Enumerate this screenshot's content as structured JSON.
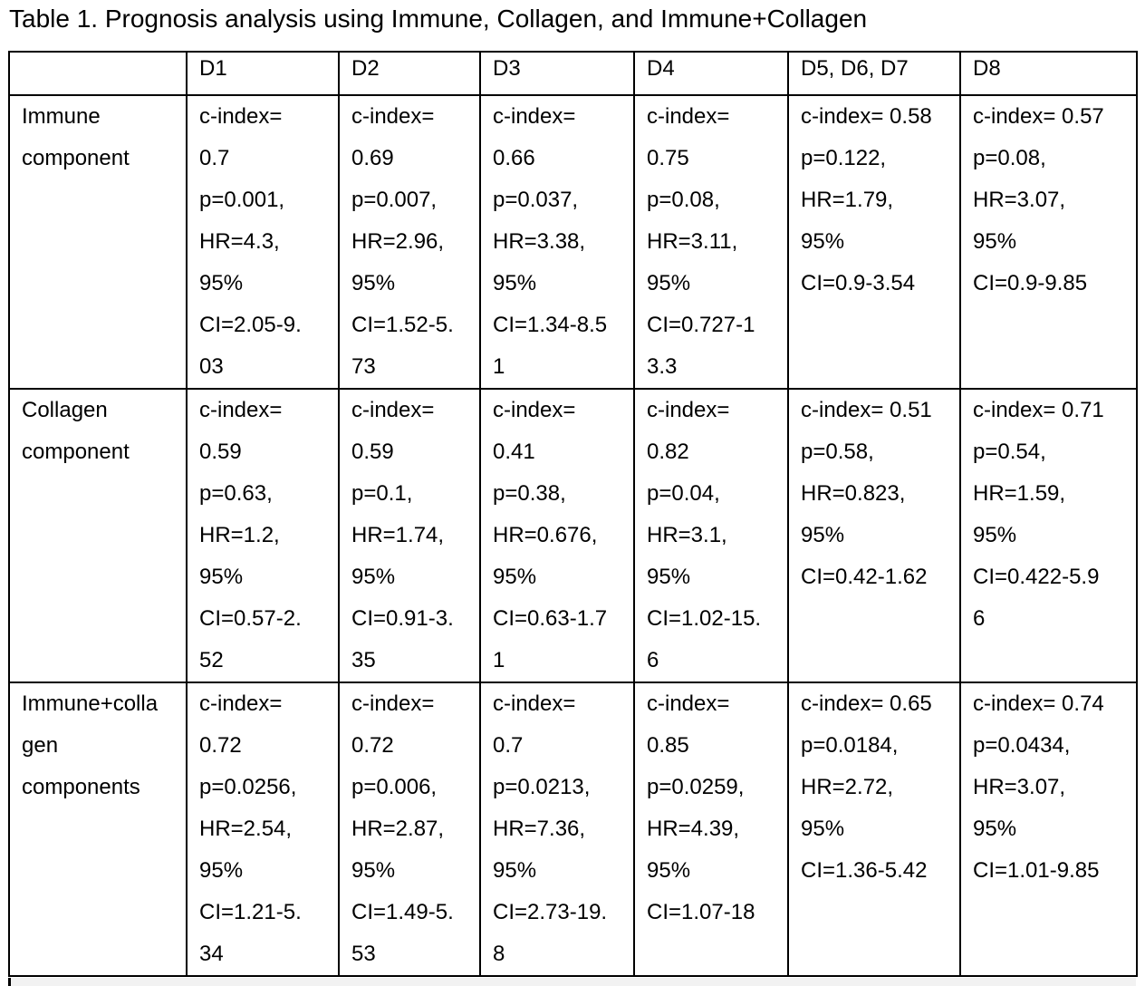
{
  "title": "Table 1. Prognosis analysis using Immune, Collagen, and Immune+Collagen",
  "table": {
    "headers": [
      "",
      "D1",
      "D2",
      "D3",
      "D4",
      "D5, D6, D7",
      "D8"
    ],
    "rows": [
      {
        "label": [
          "Immune",
          "component"
        ],
        "cells": [
          [
            "c-index=",
            "0.7",
            "p=0.001,",
            "HR=4.3,",
            "95%",
            "CI=2.05-9.",
            "03"
          ],
          [
            "c-index=",
            "0.69",
            "p=0.007,",
            "HR=2.96,",
            "95%",
            "CI=1.52-5.",
            "73"
          ],
          [
            "c-index=",
            "0.66",
            "p=0.037,",
            "HR=3.38,",
            "95%",
            "CI=1.34-8.5",
            "1"
          ],
          [
            "c-index=",
            "0.75",
            "p=0.08,",
            "HR=3.11,",
            "95%",
            "CI=0.727-1",
            "3.3"
          ],
          [
            "c-index= 0.58",
            "p=0.122,",
            "HR=1.79,",
            "95%",
            "CI=0.9-3.54"
          ],
          [
            "c-index= 0.57",
            "p=0.08,",
            "HR=3.07,",
            "95%",
            "CI=0.9-9.85"
          ]
        ]
      },
      {
        "label": [
          "Collagen",
          "component"
        ],
        "cells": [
          [
            "c-index=",
            "0.59",
            "p=0.63,",
            "HR=1.2,",
            "95%",
            "CI=0.57-2.",
            "52"
          ],
          [
            "c-index=",
            "0.59",
            "p=0.1,",
            "HR=1.74,",
            "95%",
            "CI=0.91-3.",
            "35"
          ],
          [
            "c-index=",
            "0.41",
            "p=0.38,",
            "HR=0.676,",
            "95%",
            "CI=0.63-1.7",
            "1"
          ],
          [
            "c-index=",
            "0.82",
            "p=0.04,",
            "HR=3.1,",
            "95%",
            "CI=1.02-15.",
            "6"
          ],
          [
            "c-index= 0.51",
            "p=0.58,",
            "HR=0.823,",
            "95%",
            "CI=0.42-1.62"
          ],
          [
            "c-index= 0.71",
            "p=0.54,",
            "HR=1.59,",
            "95%",
            "CI=0.422-5.9",
            "6"
          ]
        ]
      },
      {
        "label": [
          "Immune+colla",
          "gen",
          "components"
        ],
        "cells": [
          [
            "c-index=",
            "0.72",
            "p=0.0256,",
            "HR=2.54,",
            "95%",
            "CI=1.21-5.",
            "34"
          ],
          [
            "c-index=",
            "0.72",
            "p=0.006,",
            "HR=2.87,",
            "95%",
            "CI=1.49-5.",
            "53"
          ],
          [
            "c-index=",
            "0.7",
            "p=0.0213,",
            "HR=7.36,",
            "95%",
            "CI=2.73-19.",
            "8"
          ],
          [
            "c-index=",
            "0.85",
            "p=0.0259,",
            "HR=4.39,",
            "95%",
            "CI=1.07-18"
          ],
          [
            "c-index= 0.65",
            "p=0.0184,",
            "HR=2.72,",
            "95%",
            "CI=1.36-5.42"
          ],
          [
            "c-index= 0.74",
            "p=0.0434,",
            "HR=3.07,",
            "95%",
            "CI=1.01-9.85"
          ]
        ]
      }
    ]
  }
}
